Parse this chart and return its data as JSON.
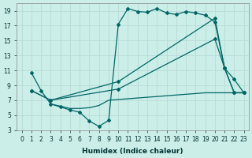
{
  "xlabel": "Humidex (Indice chaleur)",
  "xlim": [
    -0.5,
    23.5
  ],
  "ylim": [
    3,
    20
  ],
  "bg_color": "#cceee8",
  "grid_color": "#bbddda",
  "line_color": "#006666",
  "yticks": [
    3,
    5,
    7,
    9,
    11,
    13,
    15,
    17,
    19
  ],
  "xticks": [
    0,
    1,
    2,
    3,
    4,
    5,
    6,
    7,
    8,
    9,
    10,
    11,
    12,
    13,
    14,
    15,
    16,
    17,
    18,
    19,
    20,
    21,
    22,
    23
  ],
  "series": [
    {
      "x": [
        1,
        2,
        3,
        4,
        5,
        6,
        7,
        8,
        9,
        10,
        11,
        12,
        13,
        14,
        15,
        16,
        17,
        18,
        19,
        20,
        21,
        22,
        23
      ],
      "y": [
        10.7,
        8.3,
        6.5,
        6.1,
        5.7,
        5.4,
        4.2,
        3.5,
        4.3,
        17.2,
        19.3,
        18.9,
        18.8,
        19.3,
        18.7,
        18.5,
        18.9,
        18.7,
        18.4,
        17.5,
        11.3,
        9.8,
        8.0
      ]
    },
    {
      "x": [
        1,
        3,
        10,
        20,
        21,
        22,
        23
      ],
      "y": [
        8.3,
        7.0,
        9.5,
        18.0,
        11.3,
        8.0,
        8.0
      ]
    },
    {
      "x": [
        1,
        3,
        10,
        20,
        21,
        22,
        23
      ],
      "y": [
        8.3,
        7.0,
        8.5,
        15.2,
        11.3,
        8.0,
        8.0
      ]
    },
    {
      "x": [
        3,
        4,
        5,
        6,
        7,
        8,
        9,
        10,
        11,
        12,
        13,
        14,
        15,
        16,
        17,
        18,
        19,
        20,
        21,
        22,
        23
      ],
      "y": [
        6.5,
        6.2,
        5.9,
        5.9,
        6.0,
        6.3,
        7.0,
        7.1,
        7.2,
        7.3,
        7.4,
        7.5,
        7.6,
        7.7,
        7.8,
        7.9,
        8.0,
        8.0,
        8.0,
        8.0,
        8.0
      ]
    }
  ]
}
